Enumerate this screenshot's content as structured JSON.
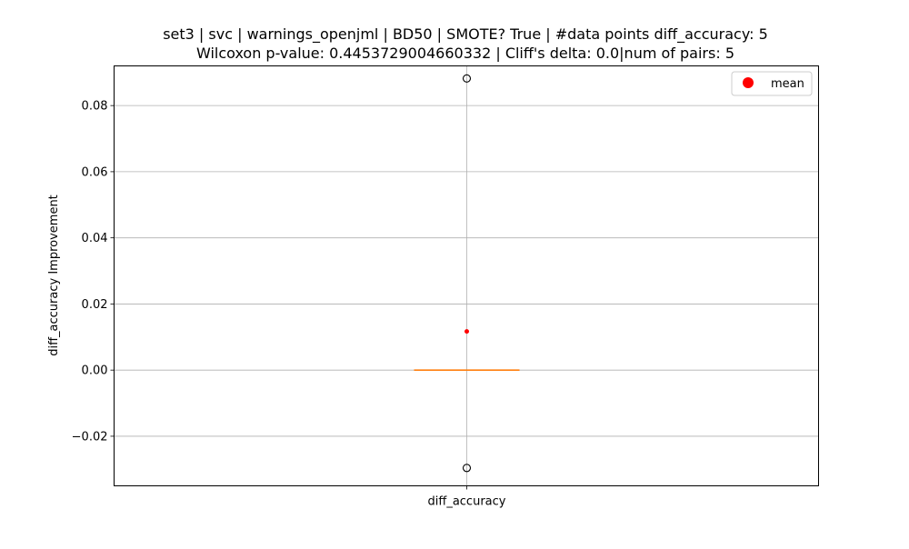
{
  "chart_data": {
    "type": "box",
    "title_line1": "set3 | svc | warnings_openjml | BD50 | SMOTE? True | #data points diff_accuracy: 5",
    "title_line2": "Wilcoxon p-value: 0.4453729004660332 | Cliff's delta: 0.0|num of pairs: 5",
    "xlabel": "",
    "ylabel": "diff_accuracy Improvement",
    "categories": [
      "diff_accuracy"
    ],
    "ylim": [
      -0.035,
      0.092
    ],
    "yticks": [
      -0.02,
      0.0,
      0.02,
      0.04,
      0.06,
      0.08
    ],
    "ytick_labels": [
      "−0.02",
      "0.00",
      "0.02",
      "0.04",
      "0.06",
      "0.08"
    ],
    "grid": true,
    "legend": {
      "position": "top-right",
      "entries": [
        {
          "label": "mean",
          "color": "#ff0000",
          "marker": "circle"
        }
      ]
    },
    "box": {
      "q1": 0.0,
      "median": 0.0,
      "q3": 0.0,
      "whisker_low": 0.0,
      "whisker_high": 0.0,
      "mean": 0.0117,
      "outliers": [
        0.0882,
        -0.0296
      ]
    },
    "colors": {
      "median": "#ff7f0e",
      "mean": "#ff0000",
      "grid": "#b0b0b0"
    }
  }
}
